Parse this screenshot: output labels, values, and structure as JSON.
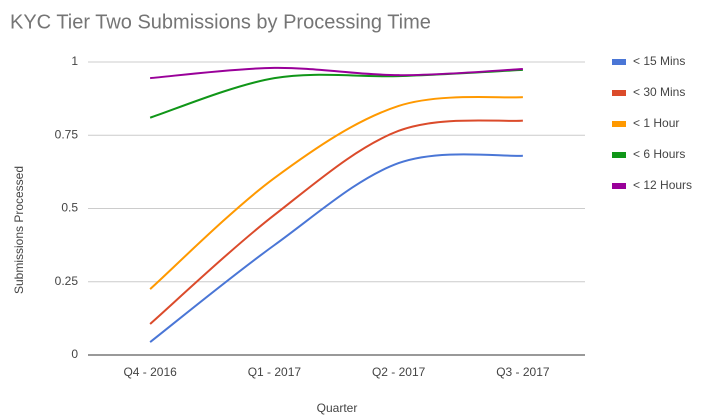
{
  "chart_data": {
    "type": "line",
    "title": "KYC Tier Two Submissions by Processing Time",
    "x_label": "Quarter",
    "y_label": "Submissions Processed",
    "categories": [
      "Q4 - 2016",
      "Q1 - 2017",
      "Q2 - 2017",
      "Q3 - 2017"
    ],
    "series": [
      {
        "name": "< 15 Mins",
        "color": "#4a76d6",
        "values": [
          0.044,
          0.375,
          0.655,
          0.68
        ]
      },
      {
        "name": "< 30 Mins",
        "color": "#db4b2b",
        "values": [
          0.106,
          0.478,
          0.765,
          0.8
        ]
      },
      {
        "name": "< 1 Hour",
        "color": "#ff9900",
        "values": [
          0.225,
          0.604,
          0.85,
          0.88
        ]
      },
      {
        "name": "< 6 Hours",
        "color": "#109618",
        "values": [
          0.81,
          0.945,
          0.952,
          0.973
        ]
      },
      {
        "name": "< 12 Hours",
        "color": "#990099",
        "values": [
          0.945,
          0.98,
          0.955,
          0.976
        ]
      }
    ],
    "ylim": [
      0,
      1
    ],
    "yticks": [
      0,
      0.25,
      0.5,
      0.75,
      1
    ],
    "grid": true,
    "smooth": true,
    "legend": "right"
  }
}
